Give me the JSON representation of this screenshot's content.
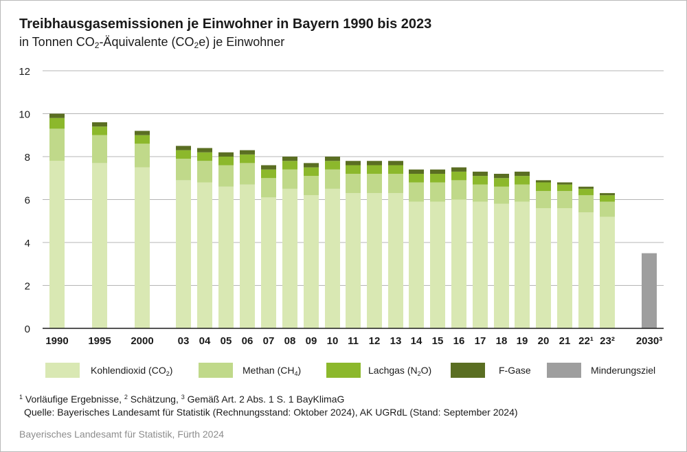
{
  "title": "Treibhausgasemissionen je Einwohner in Bayern 1990 bis 2023",
  "subtitle": {
    "prefix": "in Tonnen CO",
    "sub1": "2",
    "middle": "-Äquivalente (CO",
    "sub2": "2",
    "suffix": "e) je Einwohner"
  },
  "footnote": {
    "s1": "1",
    "t1": " Vorläufige Ergebnisse, ",
    "s2": "2",
    "t2": " Schätzung, ",
    "s3": "3",
    "t3": " Gemäß Art. 2 Abs. 1 S. 1 BayKlimaG"
  },
  "source": "Quelle: Bayerisches Landesamt für Statistik (Rechnungsstand: Oktober 2024), AK UGRdL (Stand: September 2024)",
  "credit": "Bayerisches Landesamt für Statistik, Fürth 2024",
  "legend": [
    {
      "pre": "Kohlendioxid (CO",
      "sub": "2",
      "post": ")",
      "color": "#d9e8b3"
    },
    {
      "pre": "Methan (CH",
      "sub": "4",
      "post": ")",
      "color": "#c0d98a"
    },
    {
      "pre": "Lachgas (N",
      "sub": "2",
      "post": "O)",
      "color": "#8cb82c"
    },
    {
      "pre": "F-Gase",
      "sub": "",
      "post": "",
      "color": "#5a6e22"
    },
    {
      "pre": "Minderungsziel",
      "sub": "",
      "post": "",
      "color": "#9e9e9e"
    }
  ],
  "chart_data": {
    "type": "bar",
    "stacked": true,
    "ylim": [
      0,
      12
    ],
    "yticks": [
      0,
      2,
      4,
      6,
      8,
      10,
      12
    ],
    "grid": true,
    "legend_position": "bottom",
    "categories": [
      "1990",
      "1995",
      "2000",
      "03",
      "04",
      "05",
      "06",
      "07",
      "08",
      "09",
      "10",
      "11",
      "12",
      "13",
      "14",
      "15",
      "16",
      "17",
      "18",
      "19",
      "20",
      "21",
      "22¹",
      "23²",
      "2030³"
    ],
    "series": [
      {
        "name": "Kohlendioxid (CO2)",
        "color": "#d9e8b3",
        "values": [
          7.8,
          7.7,
          7.5,
          6.9,
          6.8,
          6.6,
          6.7,
          6.1,
          6.5,
          6.2,
          6.5,
          6.3,
          6.3,
          6.3,
          5.9,
          5.9,
          6.0,
          5.9,
          5.8,
          5.9,
          5.6,
          5.6,
          5.4,
          5.2,
          null
        ]
      },
      {
        "name": "Methan (CH4)",
        "color": "#c0d98a",
        "values": [
          1.5,
          1.3,
          1.1,
          1.0,
          1.0,
          1.0,
          1.0,
          0.9,
          0.9,
          0.9,
          0.9,
          0.9,
          0.9,
          0.9,
          0.9,
          0.9,
          0.9,
          0.8,
          0.8,
          0.8,
          0.8,
          0.8,
          0.8,
          0.7,
          null
        ]
      },
      {
        "name": "Lachgas (N2O)",
        "color": "#8cb82c",
        "values": [
          0.5,
          0.4,
          0.4,
          0.4,
          0.4,
          0.4,
          0.4,
          0.4,
          0.4,
          0.4,
          0.4,
          0.4,
          0.4,
          0.4,
          0.4,
          0.4,
          0.4,
          0.4,
          0.4,
          0.4,
          0.4,
          0.3,
          0.3,
          0.3,
          null
        ]
      },
      {
        "name": "F-Gase",
        "color": "#5a6e22",
        "values": [
          0.2,
          0.2,
          0.2,
          0.2,
          0.2,
          0.2,
          0.2,
          0.2,
          0.2,
          0.2,
          0.2,
          0.2,
          0.2,
          0.2,
          0.2,
          0.2,
          0.2,
          0.2,
          0.2,
          0.2,
          0.1,
          0.1,
          0.1,
          0.1,
          null
        ]
      },
      {
        "name": "Minderungsziel",
        "color": "#9e9e9e",
        "values": [
          null,
          null,
          null,
          null,
          null,
          null,
          null,
          null,
          null,
          null,
          null,
          null,
          null,
          null,
          null,
          null,
          null,
          null,
          null,
          null,
          null,
          null,
          null,
          null,
          3.5
        ]
      }
    ]
  }
}
